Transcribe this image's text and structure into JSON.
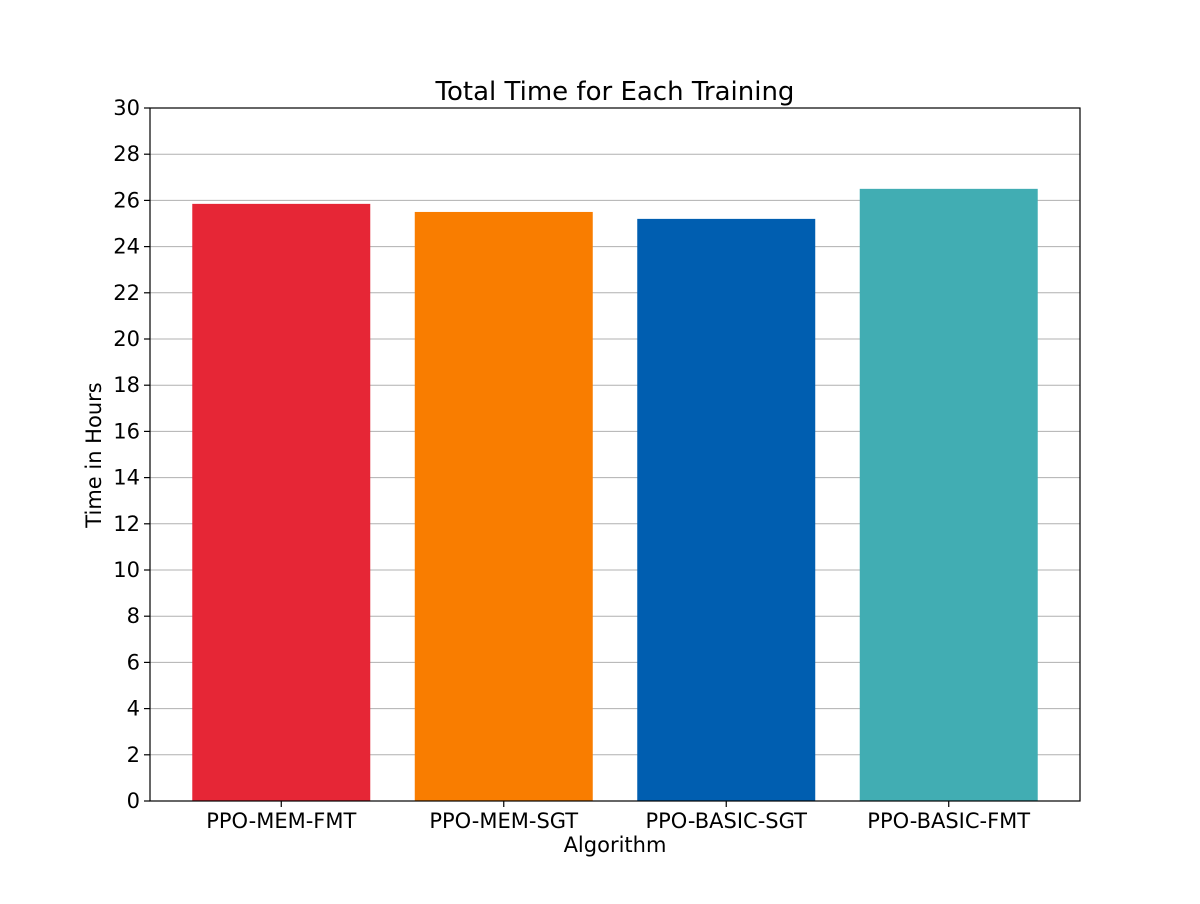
{
  "chart_data": {
    "type": "bar",
    "title": "Total Time for Each Training",
    "xlabel": "Algorithm",
    "ylabel": "Time in Hours",
    "categories": [
      "PPO-MEM-FMT",
      "PPO-MEM-SGT",
      "PPO-BASIC-SGT",
      "PPO-BASIC-FMT"
    ],
    "values": [
      25.85,
      25.5,
      25.2,
      26.5
    ],
    "colors": [
      "#e62636",
      "#f97d00",
      "#005eb0",
      "#41adb3"
    ],
    "ylim": [
      0,
      30
    ],
    "yticks": [
      "0",
      "2",
      "4",
      "6",
      "8",
      "10",
      "12",
      "14",
      "16",
      "18",
      "20",
      "22",
      "24",
      "26",
      "28",
      "30"
    ],
    "grid": "y-axis",
    "legend": "none"
  }
}
